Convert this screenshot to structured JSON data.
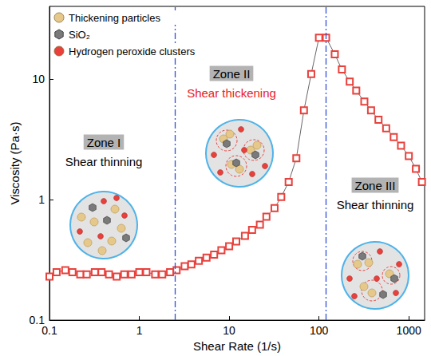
{
  "chart_data": {
    "type": "line",
    "xlabel": "Shear Rate (1/s)",
    "ylabel": "Viscosity (Pa·s)",
    "log": true,
    "xlim": [
      0.1,
      1500
    ],
    "ylim": [
      0.1,
      40
    ],
    "xticks": [
      0.1,
      1,
      10,
      100,
      1000
    ],
    "yticks": [
      0.1,
      1,
      10
    ],
    "grid": false,
    "x": [
      0.1,
      0.12,
      0.15,
      0.18,
      0.22,
      0.26,
      0.32,
      0.38,
      0.46,
      0.56,
      0.68,
      0.82,
      1,
      1.2,
      1.5,
      1.8,
      2.2,
      2.6,
      3.2,
      3.8,
      4.6,
      5.6,
      6.8,
      8.2,
      10,
      12,
      15,
      18,
      22,
      26,
      32,
      38,
      46,
      56,
      68,
      82,
      100,
      120,
      150,
      180,
      220,
      260,
      320,
      380,
      460,
      560,
      680,
      820,
      1000,
      1200,
      1400
    ],
    "values": [
      0.23,
      0.25,
      0.26,
      0.25,
      0.24,
      0.24,
      0.25,
      0.25,
      0.24,
      0.23,
      0.24,
      0.24,
      0.25,
      0.25,
      0.24,
      0.24,
      0.25,
      0.26,
      0.28,
      0.29,
      0.31,
      0.33,
      0.35,
      0.38,
      0.41,
      0.45,
      0.5,
      0.56,
      0.62,
      0.72,
      0.85,
      1.05,
      1.4,
      2.2,
      5.5,
      11,
      22,
      22,
      16,
      12,
      9.5,
      8,
      6.5,
      5.5,
      4.6,
      3.9,
      3.3,
      2.8,
      2.3,
      1.8,
      1.4
    ],
    "color": "#e8413c",
    "marker": "square",
    "line_style": "solid",
    "zone_boundaries": [
      2.5,
      120
    ],
    "annotations": [
      {
        "title": "Zone I",
        "text": "Shear thinning",
        "color": "#000000"
      },
      {
        "title": "Zone II",
        "text": "Shear thickening",
        "color": "#e8212a"
      },
      {
        "title": "Zone III",
        "text": "Shear thinning",
        "color": "#000000"
      }
    ],
    "legend": "upper left",
    "legend_items": [
      {
        "label": "Thickening particles",
        "color": "#e6c98a",
        "marker": "circle"
      },
      {
        "label": "SiO₂",
        "color": "#7a7a7a",
        "marker": "hexagon"
      },
      {
        "label": "Hydrogen peroxide clusters",
        "color": "#e8413c",
        "marker": "circle"
      }
    ]
  }
}
